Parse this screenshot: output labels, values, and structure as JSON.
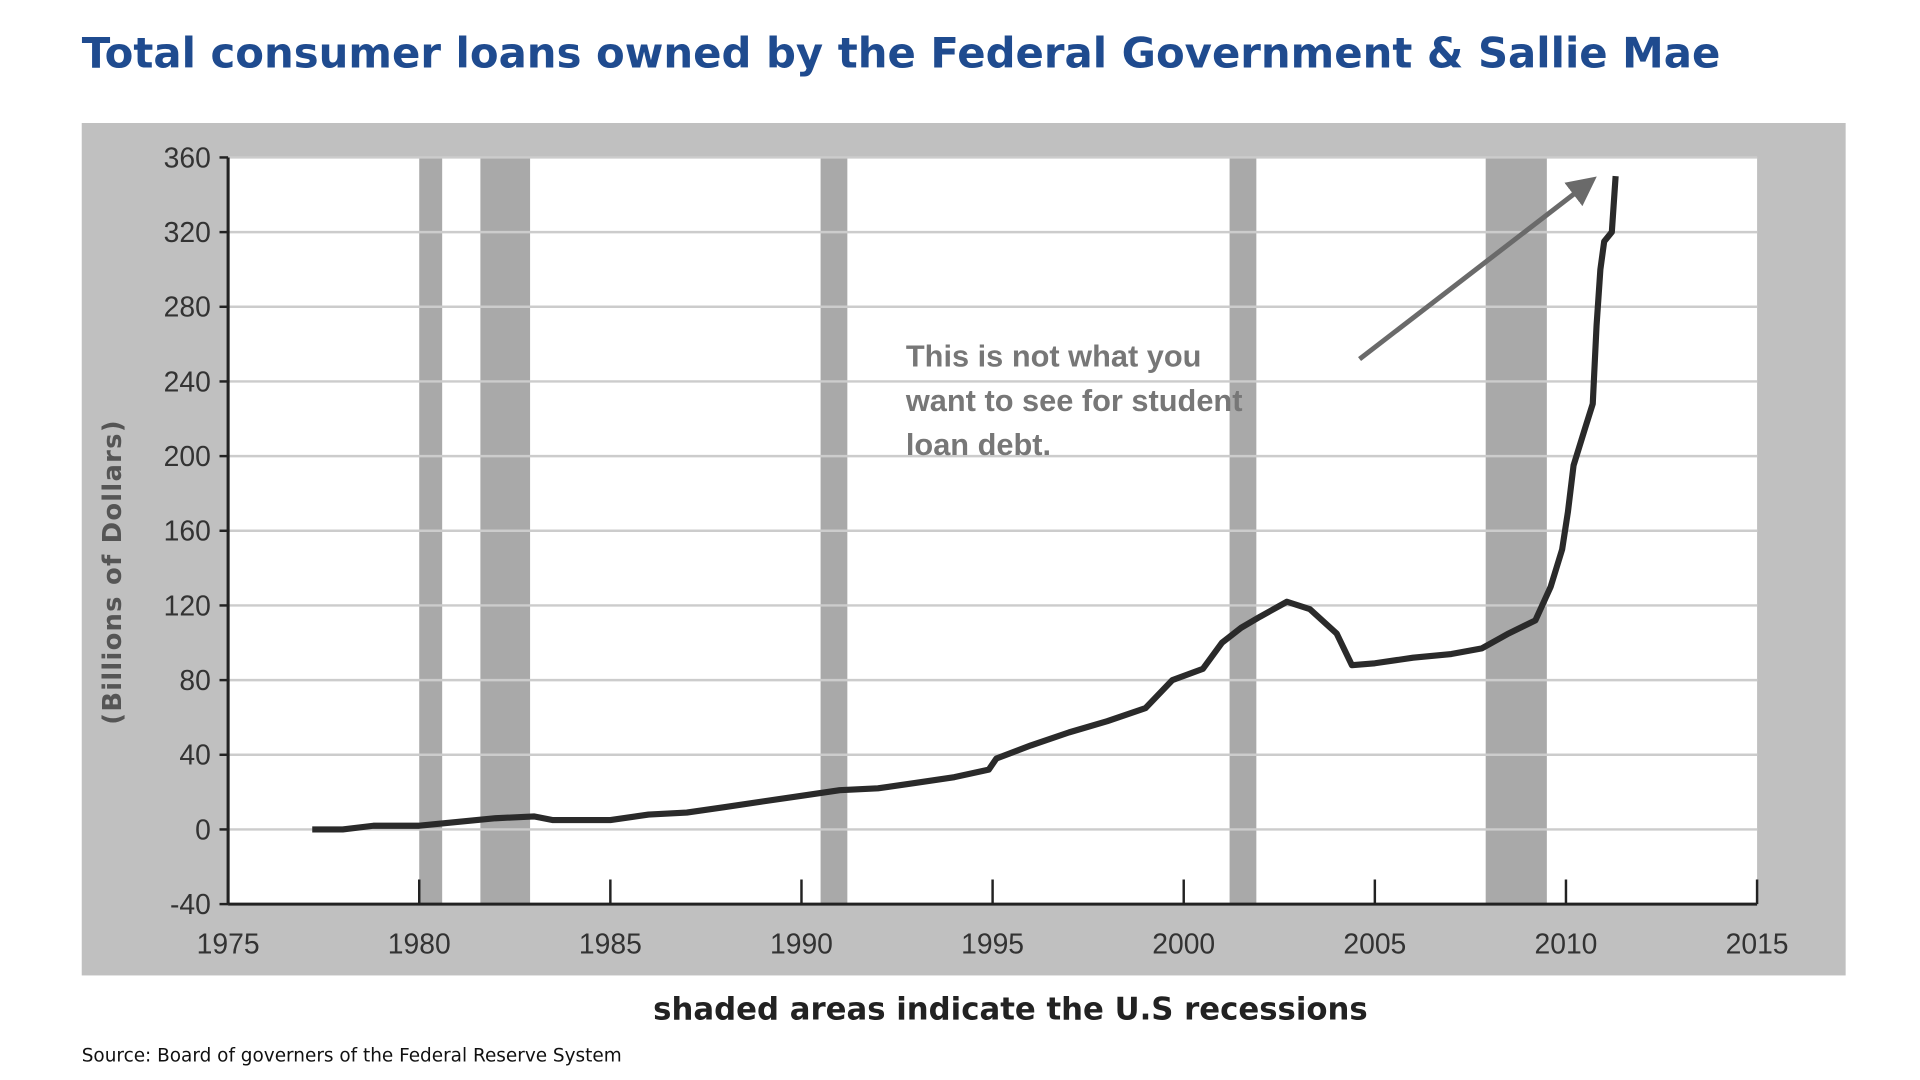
{
  "chart_data": {
    "type": "line",
    "title": "Total consumer loans owned by the Federal Government & Sallie Mae",
    "ylabel": "(Billions of Dollars)",
    "xlabel": "",
    "xlim": [
      1975,
      2015
    ],
    "ylim": [
      -40,
      360
    ],
    "xticks": [
      "1975",
      "1980",
      "1985",
      "1990",
      "1995",
      "2000",
      "2005",
      "2010",
      "2015"
    ],
    "yticks": [
      "360",
      "320",
      "280",
      "240",
      "200",
      "160",
      "120",
      "80",
      "40",
      "0",
      "-40"
    ],
    "grid": true,
    "series": [
      {
        "x": [
          1977.2,
          1978,
          1978.8,
          1980,
          1981,
          1982,
          1983,
          1983.5,
          1985,
          1986,
          1987,
          1988,
          1989,
          1990,
          1991,
          1992,
          1993,
          1994,
          1994.9,
          1995.1,
          1996,
          1997,
          1998,
          1999,
          1999.7,
          2000.5,
          2001,
          2001.5,
          2002,
          2002.7,
          2003.3,
          2004,
          2004.4,
          2005,
          2006,
          2007,
          2007.8,
          2008.5,
          2009.2,
          2009.6,
          2009.9,
          2010.05,
          2010.2,
          2010.5,
          2010.7,
          2010.8,
          2010.9,
          2011,
          2011.2,
          2011.3
        ],
        "y": [
          0,
          0,
          2,
          2,
          4,
          6,
          7,
          5,
          5,
          8,
          9,
          12,
          15,
          18,
          21,
          22,
          25,
          28,
          32,
          38,
          45,
          52,
          58,
          65,
          80,
          86,
          100,
          108,
          114,
          122,
          118,
          105,
          88,
          89,
          92,
          94,
          97,
          105,
          112,
          130,
          150,
          170,
          195,
          215,
          228,
          270,
          300,
          315,
          320,
          350
        ],
        "color": "#2a2a2a"
      }
    ],
    "recessions": [
      [
        1980.0,
        1980.6
      ],
      [
        1981.6,
        1982.9
      ],
      [
        1990.5,
        1991.2
      ],
      [
        2001.2,
        2001.9
      ],
      [
        2007.9,
        2009.5
      ]
    ],
    "annotation": {
      "lines": [
        "This is not what you",
        "want to see for student",
        "loan debt."
      ],
      "arrow_from": [
        2004.6,
        252
      ],
      "arrow_to": [
        2010.5,
        345
      ]
    },
    "colors": {
      "title": "#1f4b8f",
      "recession": "#a9a9a9",
      "frame": "#c0c0c0",
      "grid": "#cccccc"
    }
  },
  "caption": "shaded areas indicate the U.S recessions",
  "source": "Source: Board of governers of the Federal Reserve System"
}
